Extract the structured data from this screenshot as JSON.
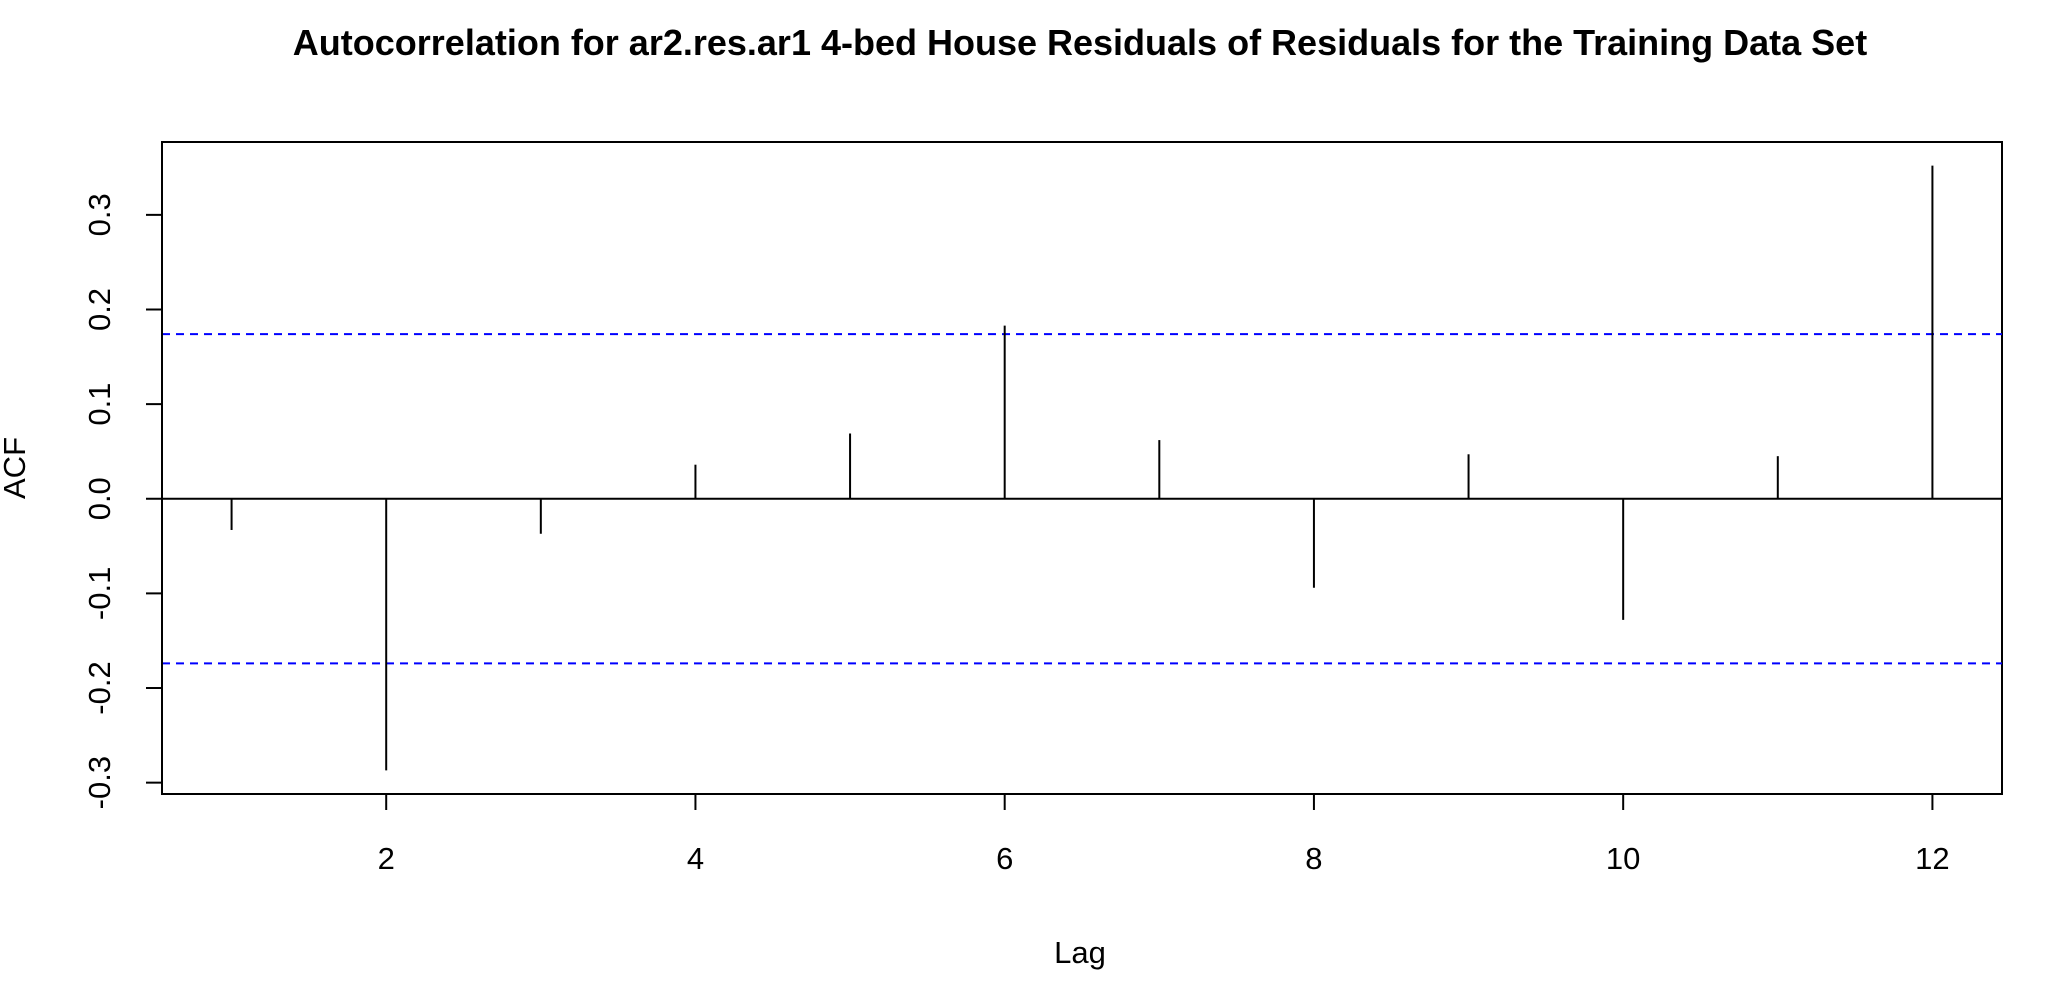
{
  "chart_data": {
    "type": "bar",
    "title": "Autocorrelation for ar2.res.ar1 4-bed House Residuals of Residuals for the Training Data Set",
    "xlabel": "Lag",
    "ylabel": "ACF",
    "x": [
      1,
      2,
      3,
      4,
      5,
      6,
      7,
      8,
      9,
      10,
      11,
      12
    ],
    "values": [
      -0.033,
      -0.287,
      -0.037,
      0.036,
      0.069,
      0.183,
      0.062,
      -0.094,
      0.047,
      -0.128,
      0.045,
      0.352
    ],
    "confidence_bounds": [
      -0.174,
      0.174
    ],
    "xlim": [
      0.55,
      12.45
    ],
    "ylim": [
      -0.312,
      0.377
    ],
    "xticks": [
      2,
      4,
      6,
      8,
      10,
      12
    ],
    "yticks": [
      -0.3,
      -0.2,
      -0.1,
      0.0,
      0.1,
      0.2,
      0.3
    ],
    "xtick_labels": [
      "2",
      "4",
      "6",
      "8",
      "10",
      "12"
    ],
    "ytick_labels": [
      "-0.3",
      "-0.2",
      "-0.1",
      "0.0",
      "0.1",
      "0.2",
      "0.3"
    ],
    "grid": false,
    "colors": {
      "bars": "#000000",
      "bounds": "#0000ff",
      "zero_line": "#000000"
    }
  }
}
